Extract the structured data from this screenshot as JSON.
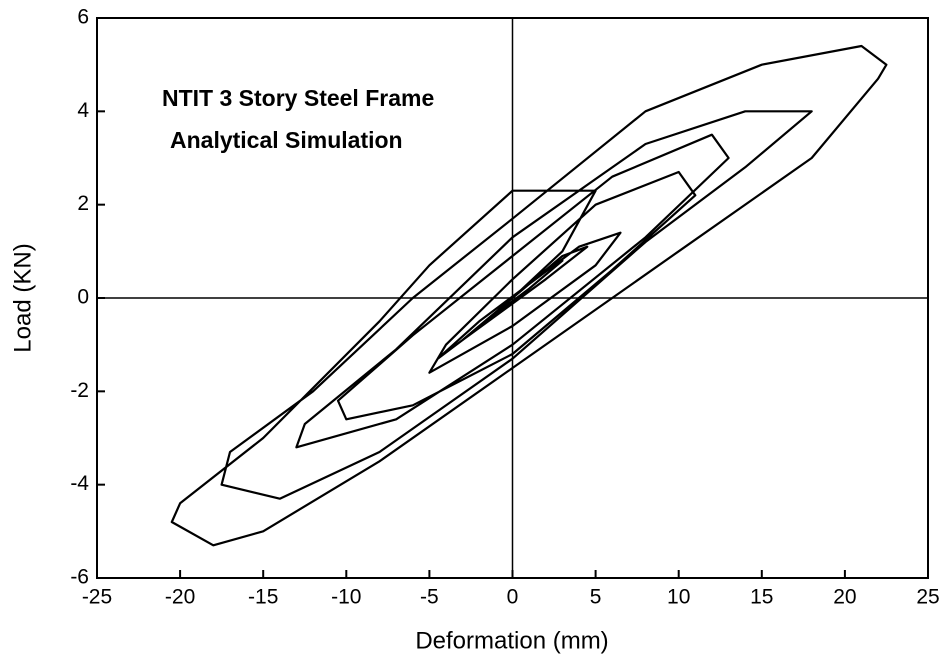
{
  "chart_data": {
    "type": "line",
    "xlabel": "Deformation (mm)",
    "ylabel": "Load (KN)",
    "annotations": [
      "NTIT 3 Story Steel Frame",
      "Analytical Simulation"
    ],
    "color": "#000000",
    "zero_lines": true,
    "xlim": [
      -25,
      25
    ],
    "ylim": [
      -6,
      6
    ],
    "xticks": [
      -25,
      -20,
      -15,
      -10,
      -5,
      0,
      5,
      10,
      15,
      20,
      25
    ],
    "yticks": [
      -6,
      -4,
      -2,
      0,
      2,
      4,
      6
    ],
    "x": [
      0,
      2,
      3,
      1,
      -2,
      -3,
      -1,
      3,
      4.5,
      2,
      -3,
      -4.5,
      -2,
      4,
      6.5,
      5,
      0,
      -5,
      -4,
      0,
      5,
      10,
      11,
      6,
      0,
      -6,
      -10,
      -10.5,
      -6,
      0,
      6,
      12,
      13,
      8,
      0,
      -7,
      -13,
      -12.5,
      -7,
      0,
      8,
      14,
      18,
      14,
      8,
      0,
      -8,
      -14,
      -17.5,
      -17,
      -12,
      -6,
      0,
      8,
      15,
      21,
      22.5,
      22,
      18,
      10,
      0,
      -8,
      -15,
      -18,
      -20.5,
      -20,
      -15,
      -8,
      -5,
      0,
      5,
      3,
      0
    ],
    "values": [
      0,
      0.6,
      0.8,
      0.2,
      -0.6,
      -0.9,
      -0.3,
      0.9,
      1.1,
      0.4,
      -0.9,
      -1.3,
      -0.5,
      1.1,
      1.4,
      0.7,
      -0.6,
      -1.6,
      -1.0,
      0.4,
      2,
      2.7,
      2.2,
      0.6,
      -1.2,
      -2.3,
      -2.6,
      -2.2,
      -0.8,
      0.9,
      2.6,
      3.5,
      3,
      1.3,
      -1.0,
      -2.6,
      -3.2,
      -2.7,
      -1.1,
      1.3,
      3.3,
      4,
      4,
      2.8,
      1.2,
      -1.3,
      -3.3,
      -4.3,
      -4,
      -3.3,
      -2,
      0,
      1.7,
      4,
      5,
      5.4,
      5,
      4.7,
      3.0,
      1.0,
      -1.5,
      -3.5,
      -5,
      -5.3,
      -4.8,
      -4.4,
      -3,
      -0.5,
      0.7,
      2.3,
      2.3,
      1,
      0
    ]
  }
}
